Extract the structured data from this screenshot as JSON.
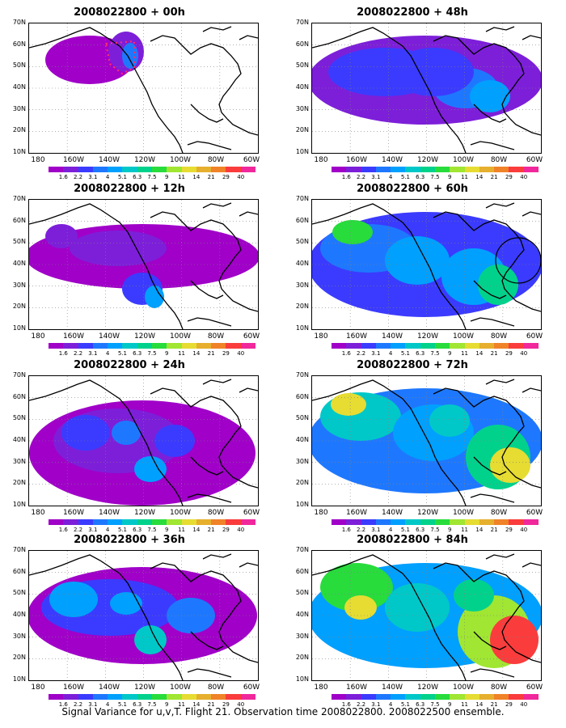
{
  "figure": {
    "caption": "Signal Variance for u,v,T. Flight 21. Observation time 2008022800. 2008022500 ensemble.",
    "lat_labels": [
      "70N",
      "60N",
      "50N",
      "40N",
      "30N",
      "20N",
      "10N"
    ],
    "lon_labels": [
      "180",
      "160W",
      "140W",
      "120W",
      "100W",
      "80W",
      "60W"
    ],
    "colorbar_labels": [
      "1.6",
      "2.2",
      "3.1",
      "4",
      "5.1",
      "6.3",
      "7.5",
      "9",
      "11",
      "14",
      "21",
      "29",
      "40"
    ],
    "colorbar_colors": [
      "#a000c8",
      "#7d1fd9",
      "#3b3bff",
      "#1e78ff",
      "#00a0ff",
      "#00c8c8",
      "#00d28c",
      "#28dc3c",
      "#a0e632",
      "#e6dc32",
      "#e6af2d",
      "#f08228",
      "#fa3c3c",
      "#f0289b"
    ]
  },
  "panels": [
    {
      "id": "p00",
      "title": "2008022800 + 00h",
      "lead_hours": 0
    },
    {
      "id": "p48",
      "title": "2008022800 + 48h",
      "lead_hours": 48
    },
    {
      "id": "p12",
      "title": "2008022800 + 12h",
      "lead_hours": 12
    },
    {
      "id": "p60",
      "title": "2008022800 + 60h",
      "lead_hours": 60
    },
    {
      "id": "p24",
      "title": "2008022800 + 24h",
      "lead_hours": 24
    },
    {
      "id": "p72",
      "title": "2008022800 + 72h",
      "lead_hours": 72
    },
    {
      "id": "p36",
      "title": "2008022800 + 36h",
      "lead_hours": 36
    },
    {
      "id": "p84",
      "title": "2008022800 + 84h",
      "lead_hours": 84
    }
  ]
}
